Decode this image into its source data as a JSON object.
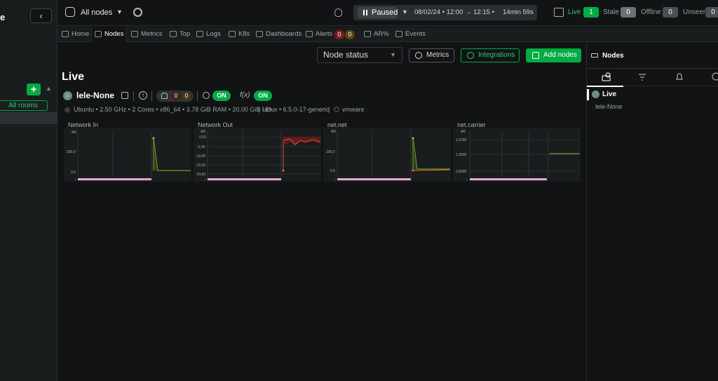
{
  "sidebar": {
    "brand_fragment": "e",
    "collapse_glyph": "‹",
    "add_glyph": "+",
    "rooms_label": "All rooms"
  },
  "topbar": {
    "nodes_label": "All nodes",
    "player": {
      "state": "Paused",
      "range_start": "08/02/24 • 12:00",
      "arrow": "→",
      "range_end": "12:15",
      "range_sep": "•",
      "duration": "14min 59s"
    },
    "status": {
      "live_label": "Live",
      "live_count": "1",
      "stale_label": "Stale",
      "stale_count": "0",
      "offline_label": "Offline",
      "offline_count": "0",
      "unseen_label": "Unseen",
      "unseen_count": "0"
    },
    "colors": {
      "live": "#00ab44",
      "badge_gray": "#6b7174"
    }
  },
  "tabs": [
    {
      "label": "Home"
    },
    {
      "label": "Nodes"
    },
    {
      "label": "Metrics"
    },
    {
      "label": "Top"
    },
    {
      "label": "Logs"
    },
    {
      "label": "K8s"
    },
    {
      "label": "Dashboards"
    },
    {
      "label": "Alerts"
    },
    {
      "label": "AR%"
    },
    {
      "label": "Events"
    }
  ],
  "alerts_badges": {
    "critical": "0",
    "warning": "0"
  },
  "toolbar": {
    "select_value": "Node status",
    "metrics_label": "Metrics",
    "integrations_label": "Integrations",
    "add_nodes_label": "Add nodes"
  },
  "main": {
    "heading": "Live",
    "node": {
      "name": "lele-None",
      "alerts_critical": "0",
      "alerts_warning": "0",
      "zoom_toggle": "ON",
      "fx_label": "f(x)",
      "fx_toggle": "ON",
      "meta_os": "Ubuntu • 2.50 GHz • 2 Cores • x86_64 • 3.78 GiB RAM • 20.00 GiB HD",
      "meta_kernel": "Linux • 6.5.0-17-generic",
      "meta_virt": "vmware"
    }
  },
  "charts": [
    {
      "title": "Network In",
      "unit": "AR",
      "ticks": [
        "200,0",
        "0,0"
      ]
    },
    {
      "title": "Network Out",
      "unit": "AR",
      "ticks": [
        "0,00",
        "-5,00",
        "-10,00",
        "-15,00",
        "-20,00"
      ]
    },
    {
      "title": "net.net",
      "unit": "AR",
      "ticks": [
        "200,0",
        "0,0"
      ]
    },
    {
      "title": "net.carrier",
      "unit": "AR",
      "ticks": [
        "1,1000",
        "1,0000",
        "0,9000"
      ]
    }
  ],
  "right_panel": {
    "title": "Nodes",
    "live_label": "Live",
    "node_item": "lele-None"
  }
}
